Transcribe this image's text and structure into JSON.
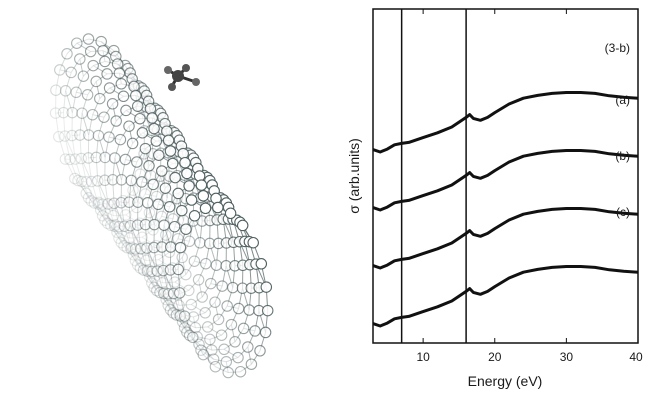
{
  "figure": {
    "left_panel": {
      "subject": "carbon nanotube ball-and-stick model with adsorbed molecule"
    }
  },
  "chart_data": {
    "type": "line",
    "title": "",
    "xlabel": "Energy (eV)",
    "ylabel": "σ (arb.units)",
    "xlim": [
      3,
      40
    ],
    "xticks": [
      10,
      20,
      30,
      40
    ],
    "yticks": [],
    "grid": false,
    "legend": "none",
    "vertical_lines_x": [
      7,
      16
    ],
    "series": [
      {
        "name": "(3-b)",
        "x": [
          3,
          4,
          5,
          6,
          7,
          8,
          10,
          12,
          14,
          15,
          16,
          16.5,
          17,
          18,
          19,
          20,
          22,
          24,
          26,
          28,
          30,
          32,
          34,
          36,
          38,
          40
        ],
        "y": [
          0.05,
          0.0,
          0.06,
          0.15,
          0.18,
          0.2,
          0.3,
          0.4,
          0.52,
          0.62,
          0.72,
          0.78,
          0.7,
          0.66,
          0.72,
          0.82,
          1.0,
          1.12,
          1.18,
          1.22,
          1.24,
          1.24,
          1.22,
          1.17,
          1.14,
          1.12
        ]
      },
      {
        "name": "(a)",
        "x": [
          3,
          4,
          5,
          6,
          7,
          8,
          10,
          12,
          14,
          15,
          16,
          16.5,
          17,
          18,
          19,
          20,
          22,
          24,
          26,
          28,
          30,
          32,
          34,
          36,
          38,
          40
        ],
        "y": [
          0.05,
          0.0,
          0.06,
          0.15,
          0.18,
          0.2,
          0.3,
          0.4,
          0.52,
          0.62,
          0.72,
          0.78,
          0.7,
          0.66,
          0.72,
          0.82,
          1.0,
          1.12,
          1.18,
          1.22,
          1.24,
          1.24,
          1.22,
          1.17,
          1.14,
          1.12
        ]
      },
      {
        "name": "(b)",
        "x": [
          3,
          4,
          5,
          6,
          7,
          8,
          10,
          12,
          14,
          15,
          16,
          16.5,
          17,
          18,
          19,
          20,
          22,
          24,
          26,
          28,
          30,
          32,
          34,
          36,
          38,
          40
        ],
        "y": [
          0.05,
          0.0,
          0.06,
          0.15,
          0.18,
          0.2,
          0.3,
          0.4,
          0.52,
          0.62,
          0.72,
          0.78,
          0.7,
          0.66,
          0.72,
          0.82,
          1.0,
          1.12,
          1.18,
          1.22,
          1.24,
          1.24,
          1.22,
          1.17,
          1.14,
          1.12
        ]
      },
      {
        "name": "(c)",
        "x": [
          3,
          4,
          5,
          6,
          7,
          8,
          10,
          12,
          14,
          15,
          16,
          16.5,
          17,
          18,
          19,
          20,
          22,
          24,
          26,
          28,
          30,
          32,
          34,
          36,
          38,
          40
        ],
        "y": [
          0.05,
          0.0,
          0.06,
          0.15,
          0.18,
          0.2,
          0.3,
          0.4,
          0.52,
          0.62,
          0.72,
          0.78,
          0.7,
          0.66,
          0.72,
          0.82,
          1.0,
          1.12,
          1.18,
          1.22,
          1.24,
          1.24,
          1.22,
          1.17,
          1.14,
          1.12
        ]
      }
    ],
    "series_offsets": [
      3,
      2,
      1,
      0
    ],
    "colors": {
      "line": "#111111",
      "axis": "#111111",
      "atom_stroke": "#4f5f60"
    }
  }
}
